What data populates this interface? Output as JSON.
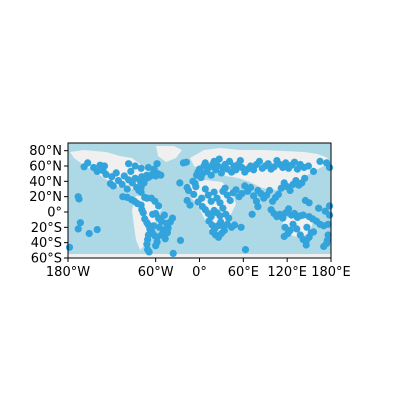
{
  "colors": {
    "ocean": "#add8e6",
    "land": "#f0f0f0",
    "marker": "#33a3dc",
    "frame": "#000000"
  },
  "map": {
    "projection": "plate-carree",
    "lon_range": [
      -180,
      180
    ],
    "lat_range": [
      -60,
      90
    ]
  },
  "axes": {
    "x_ticks": [
      {
        "value": -180,
        "label": "180°W"
      },
      {
        "value": -60,
        "label": "60°W"
      },
      {
        "value": 0,
        "label": "0°"
      },
      {
        "value": 60,
        "label": "60°E"
      },
      {
        "value": 120,
        "label": "120°E"
      },
      {
        "value": 180,
        "label": "180°E"
      }
    ],
    "y_ticks": [
      {
        "value": 80,
        "label": "80°N"
      },
      {
        "value": 60,
        "label": "60°N"
      },
      {
        "value": 40,
        "label": "40°N"
      },
      {
        "value": 20,
        "label": "20°N"
      },
      {
        "value": 0,
        "label": "0°"
      },
      {
        "value": -20,
        "label": "20°S"
      },
      {
        "value": -40,
        "label": "40°S"
      },
      {
        "value": -60,
        "label": "60°S"
      }
    ]
  },
  "chart_data": {
    "type": "scatter",
    "xlabel": "",
    "ylabel": "",
    "xlim": [
      -180,
      180
    ],
    "ylim": [
      -60,
      90
    ],
    "points": [
      [
        -166,
        -22
      ],
      [
        -163,
        -14
      ],
      [
        -151,
        -28
      ],
      [
        -140,
        -23
      ],
      [
        -178,
        -46
      ],
      [
        -166,
        20
      ],
      [
        -165,
        17
      ],
      [
        -158,
        59
      ],
      [
        -153,
        64
      ],
      [
        -145,
        58
      ],
      [
        -136,
        61
      ],
      [
        -132,
        54
      ],
      [
        -128,
        49
      ],
      [
        -122,
        37
      ],
      [
        -120,
        46
      ],
      [
        -118,
        34
      ],
      [
        -114,
        51
      ],
      [
        -111,
        41
      ],
      [
        -106,
        36
      ],
      [
        -103,
        47
      ],
      [
        -99,
        30
      ],
      [
        -97,
        42
      ],
      [
        -94,
        53
      ],
      [
        -92,
        38
      ],
      [
        -88,
        44
      ],
      [
        -86,
        32
      ],
      [
        -83,
        28
      ],
      [
        -81,
        40
      ],
      [
        -79,
        46
      ],
      [
        -76,
        38
      ],
      [
        -74,
        43
      ],
      [
        -72,
        48
      ],
      [
        -70,
        45
      ],
      [
        -67,
        47
      ],
      [
        -64,
        50
      ],
      [
        -60,
        47
      ],
      [
        -57,
        50
      ],
      [
        -53,
        48
      ],
      [
        -97,
        63
      ],
      [
        -88,
        60
      ],
      [
        -80,
        57
      ],
      [
        -70,
        58
      ],
      [
        -62,
        56
      ],
      [
        -105,
        20
      ],
      [
        -99,
        19
      ],
      [
        -93,
        16
      ],
      [
        -89,
        14
      ],
      [
        -85,
        11
      ],
      [
        -80,
        9
      ],
      [
        -75,
        19
      ],
      [
        -72,
        18
      ],
      [
        -66,
        18
      ],
      [
        -61,
        14
      ],
      [
        -56,
        8
      ],
      [
        -79,
        3
      ],
      [
        -77,
        -1
      ],
      [
        -75,
        -9
      ],
      [
        -72,
        -14
      ],
      [
        -70,
        -17
      ],
      [
        -68,
        -22
      ],
      [
        -70,
        -30
      ],
      [
        -71,
        -36
      ],
      [
        -72,
        -42
      ],
      [
        -71,
        -49
      ],
      [
        -69,
        -52
      ],
      [
        -64,
        -3
      ],
      [
        -60,
        -2
      ],
      [
        -56,
        -8
      ],
      [
        -52,
        -12
      ],
      [
        -48,
        -4
      ],
      [
        -45,
        -15
      ],
      [
        -43,
        -21
      ],
      [
        -47,
        -23
      ],
      [
        -50,
        -27
      ],
      [
        -52,
        -30
      ],
      [
        -58,
        -33
      ],
      [
        -61,
        -31
      ],
      [
        -65,
        -26
      ],
      [
        -63,
        -18
      ],
      [
        -55,
        -20
      ],
      [
        -40,
        -13
      ],
      [
        -37,
        -8
      ],
      [
        -44,
        -27
      ],
      [
        -47,
        -35
      ],
      [
        -58,
        -39
      ],
      [
        -60,
        -44
      ],
      [
        -36,
        -54
      ],
      [
        -22,
        64
      ],
      [
        -18,
        65
      ],
      [
        -15,
        28
      ],
      [
        -17,
        15
      ],
      [
        -13,
        9
      ],
      [
        -9,
        40
      ],
      [
        -6,
        37
      ],
      [
        -4,
        48
      ],
      [
        -2,
        52
      ],
      [
        0,
        56
      ],
      [
        2,
        45
      ],
      [
        4,
        50
      ],
      [
        6,
        60
      ],
      [
        8,
        64
      ],
      [
        10,
        53
      ],
      [
        13,
        58
      ],
      [
        16,
        48
      ],
      [
        18,
        62
      ],
      [
        20,
        66
      ],
      [
        22,
        55
      ],
      [
        25,
        60
      ],
      [
        27,
        69
      ],
      [
        30,
        51
      ],
      [
        32,
        58
      ],
      [
        35,
        62
      ],
      [
        38,
        56
      ],
      [
        41,
        66
      ],
      [
        44,
        52
      ],
      [
        47,
        60
      ],
      [
        50,
        55
      ],
      [
        53,
        62
      ],
      [
        56,
        67
      ],
      [
        58,
        58
      ],
      [
        62,
        52
      ],
      [
        66,
        56
      ],
      [
        70,
        60
      ],
      [
        74,
        55
      ],
      [
        78,
        62
      ],
      [
        82,
        66
      ],
      [
        86,
        57
      ],
      [
        90,
        60
      ],
      [
        94,
        63
      ],
      [
        98,
        56
      ],
      [
        102,
        59
      ],
      [
        106,
        67
      ],
      [
        110,
        62
      ],
      [
        114,
        58
      ],
      [
        118,
        64
      ],
      [
        122,
        57
      ],
      [
        126,
        61
      ],
      [
        130,
        65
      ],
      [
        134,
        56
      ],
      [
        138,
        62
      ],
      [
        143,
        58
      ],
      [
        149,
        60
      ],
      [
        156,
        53
      ],
      [
        165,
        66
      ],
      [
        174,
        64
      ],
      [
        178,
        58
      ],
      [
        -5,
        33
      ],
      [
        -8,
        23
      ],
      [
        -2,
        13
      ],
      [
        3,
        18
      ],
      [
        8,
        30
      ],
      [
        12,
        22
      ],
      [
        16,
        14
      ],
      [
        20,
        26
      ],
      [
        24,
        18
      ],
      [
        28,
        12
      ],
      [
        32,
        27
      ],
      [
        35,
        31
      ],
      [
        38,
        22
      ],
      [
        42,
        15
      ],
      [
        46,
        25
      ],
      [
        50,
        29
      ],
      [
        54,
        20
      ],
      [
        58,
        24
      ],
      [
        62,
        34
      ],
      [
        66,
        27
      ],
      [
        70,
        32
      ],
      [
        74,
        21
      ],
      [
        78,
        14
      ],
      [
        80,
        28
      ],
      [
        84,
        24
      ],
      [
        88,
        18
      ],
      [
        92,
        22
      ],
      [
        96,
        28
      ],
      [
        100,
        14
      ],
      [
        104,
        19
      ],
      [
        108,
        23
      ],
      [
        112,
        31
      ],
      [
        116,
        38
      ],
      [
        120,
        33
      ],
      [
        124,
        28
      ],
      [
        128,
        36
      ],
      [
        132,
        41
      ],
      [
        136,
        35
      ],
      [
        140,
        38
      ],
      [
        144,
        44
      ],
      [
        4,
        7
      ],
      [
        8,
        3
      ],
      [
        12,
        -2
      ],
      [
        16,
        -6
      ],
      [
        20,
        2
      ],
      [
        24,
        -1
      ],
      [
        28,
        -5
      ],
      [
        32,
        5
      ],
      [
        36,
        -3
      ],
      [
        40,
        -8
      ],
      [
        13,
        -12
      ],
      [
        17,
        -17
      ],
      [
        21,
        -22
      ],
      [
        25,
        -18
      ],
      [
        29,
        -13
      ],
      [
        33,
        -20
      ],
      [
        18,
        -26
      ],
      [
        22,
        -30
      ],
      [
        26,
        -33
      ],
      [
        30,
        -28
      ],
      [
        34,
        -24
      ],
      [
        38,
        -16
      ],
      [
        44,
        -20
      ],
      [
        48,
        -17
      ],
      [
        57,
        -20
      ],
      [
        72,
        -3
      ],
      [
        80,
        7
      ],
      [
        98,
        3
      ],
      [
        102,
        -2
      ],
      [
        106,
        -6
      ],
      [
        110,
        -3
      ],
      [
        114,
        -8
      ],
      [
        118,
        -1
      ],
      [
        122,
        4
      ],
      [
        126,
        -4
      ],
      [
        130,
        -2
      ],
      [
        134,
        -7
      ],
      [
        138,
        -5
      ],
      [
        142,
        -4
      ],
      [
        150,
        -6
      ],
      [
        155,
        -9
      ],
      [
        160,
        -12
      ],
      [
        165,
        -16
      ],
      [
        170,
        -18
      ],
      [
        176,
        -16
      ],
      [
        178,
        -4
      ],
      [
        178,
        8
      ],
      [
        172,
        1
      ],
      [
        163,
        5
      ],
      [
        150,
        12
      ],
      [
        145,
        15
      ],
      [
        117,
        -20
      ],
      [
        121,
        -28
      ],
      [
        116,
        -32
      ],
      [
        124,
        -24
      ],
      [
        128,
        -16
      ],
      [
        133,
        -22
      ],
      [
        138,
        -30
      ],
      [
        142,
        -36
      ],
      [
        146,
        -38
      ],
      [
        150,
        -33
      ],
      [
        153,
        -27
      ],
      [
        147,
        -20
      ],
      [
        175,
        -37
      ],
      [
        174,
        -41
      ],
      [
        170,
        -45
      ],
      [
        176,
        -30
      ],
      [
        63,
        -49
      ],
      [
        146,
        -43
      ],
      [
        156,
        -26
      ],
      [
        -26,
        -37
      ],
      [
        -80,
        32
      ],
      [
        -80,
        26
      ],
      [
        -58,
        63
      ],
      [
        -140,
        53
      ],
      [
        -130,
        60
      ],
      [
        -17,
        32
      ],
      [
        -27,
        38
      ]
    ]
  }
}
